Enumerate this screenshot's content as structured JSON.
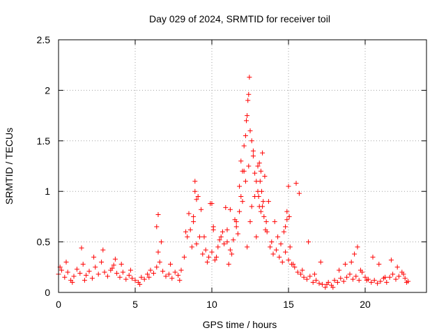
{
  "chart_data": {
    "type": "scatter",
    "title": "Day 029 of 2024, SRMTID for receiver toil",
    "xlabel": "GPS time / hours",
    "ylabel": "SRMTID / TECUs",
    "xlim": [
      0,
      24
    ],
    "ylim": [
      0,
      2.5
    ],
    "x_ticks": [
      0,
      5,
      10,
      15,
      20
    ],
    "x_tick_labels": [
      "0",
      "5",
      "10",
      "15",
      "20"
    ],
    "y_ticks": [
      0,
      0.5,
      1,
      1.5,
      2,
      2.5
    ],
    "y_tick_labels": [
      "0",
      "0.5",
      "1",
      "1.5",
      "2",
      "2.5"
    ],
    "grid": true,
    "marker": "+",
    "marker_color": "#ff0000",
    "series": [
      {
        "name": "SRMTID",
        "x": [
          0.0,
          0.2,
          0.4,
          0.6,
          0.8,
          1.0,
          1.2,
          1.4,
          1.6,
          1.8,
          2.0,
          2.2,
          2.4,
          2.6,
          2.8,
          3.0,
          3.2,
          3.4,
          3.6,
          3.8,
          4.0,
          4.2,
          4.4,
          4.6,
          4.8,
          5.0,
          5.2,
          5.4,
          5.6,
          5.8,
          6.0,
          6.2,
          6.4,
          6.6,
          6.8,
          7.0,
          7.2,
          7.4,
          7.6,
          7.8,
          8.0,
          8.2,
          8.4,
          8.6,
          8.8,
          9.0,
          9.2,
          9.4,
          9.6,
          9.8,
          10.0,
          10.2,
          10.4,
          10.6,
          10.8,
          11.0,
          11.2,
          11.4,
          11.6,
          11.8,
          12.0,
          12.2,
          12.4,
          12.6,
          12.8,
          13.0,
          13.2,
          13.4,
          13.6,
          13.8,
          14.0,
          14.2,
          14.4,
          14.6,
          14.8,
          15.0,
          15.2,
          15.4,
          15.6,
          15.8,
          16.0,
          16.2,
          16.4,
          16.6,
          16.8,
          17.0,
          17.2,
          17.4,
          17.6,
          17.8,
          18.0,
          18.2,
          18.4,
          18.6,
          18.8,
          19.0,
          19.2,
          19.4,
          19.6,
          19.8,
          20.0,
          20.2,
          20.4,
          20.6,
          20.8,
          21.0,
          21.2,
          21.4,
          21.6,
          21.8,
          22.0,
          22.2,
          22.4,
          22.6,
          22.8,
          0.1,
          0.5,
          0.9,
          1.5,
          1.7,
          2.3,
          2.9,
          3.5,
          3.7,
          4.1,
          4.7,
          5.3,
          5.9,
          6.5,
          6.7,
          7.3,
          7.9,
          8.3,
          8.5,
          8.7,
          8.9,
          9.1,
          9.3,
          9.5,
          9.7,
          9.9,
          10.1,
          10.3,
          10.5,
          10.7,
          10.9,
          11.1,
          11.3,
          11.5,
          11.7,
          11.9,
          12.1,
          12.3,
          12.5,
          12.7,
          12.9,
          13.1,
          13.3,
          13.5,
          13.7,
          13.9,
          14.1,
          14.3,
          14.5,
          14.7,
          14.9,
          15.1,
          15.3,
          15.5,
          15.7,
          15.9,
          16.3,
          16.7,
          17.1,
          17.5,
          17.9,
          18.3,
          18.7,
          19.1,
          19.3,
          19.5,
          19.7,
          20.1,
          20.5,
          20.9,
          21.3,
          21.7,
          22.1,
          22.5,
          22.7,
          12.1,
          12.2,
          12.25,
          12.3,
          12.35,
          12.4,
          12.45,
          11.9,
          12.0,
          11.8,
          12.5,
          12.6,
          12.7,
          12.8,
          12.9,
          13.0,
          13.05,
          13.1,
          13.15,
          13.2,
          13.25,
          13.3,
          13.35,
          13.45,
          13.55,
          11.0,
          11.2,
          11.6,
          14.8,
          14.9,
          15.0,
          15.05,
          8.9,
          9.0,
          8.8,
          10.0,
          10.1,
          6.5,
          6.4
        ],
        "y": [
          0.18,
          0.22,
          0.15,
          0.2,
          0.12,
          0.16,
          0.23,
          0.19,
          0.28,
          0.17,
          0.21,
          0.14,
          0.25,
          0.18,
          0.3,
          0.2,
          0.16,
          0.22,
          0.27,
          0.19,
          0.15,
          0.2,
          0.13,
          0.17,
          0.14,
          0.12,
          0.1,
          0.15,
          0.13,
          0.18,
          0.22,
          0.19,
          0.25,
          0.3,
          0.21,
          0.16,
          0.18,
          0.14,
          0.2,
          0.17,
          0.22,
          0.35,
          0.55,
          0.62,
          0.7,
          0.48,
          0.55,
          0.38,
          0.42,
          0.35,
          0.4,
          0.32,
          0.45,
          0.55,
          0.48,
          0.5,
          0.42,
          0.52,
          0.65,
          0.8,
          0.9,
          1.1,
          1.25,
          0.85,
          0.95,
          1.0,
          0.8,
          0.75,
          0.6,
          0.45,
          0.38,
          0.42,
          0.35,
          0.3,
          0.4,
          0.32,
          0.28,
          0.25,
          0.2,
          0.18,
          0.15,
          0.13,
          0.16,
          0.1,
          0.12,
          0.09,
          0.08,
          0.05,
          0.1,
          0.07,
          0.12,
          0.1,
          0.14,
          0.11,
          0.15,
          0.18,
          0.13,
          0.16,
          0.12,
          0.2,
          0.15,
          0.13,
          0.1,
          0.12,
          0.09,
          0.11,
          0.14,
          0.1,
          0.15,
          0.18,
          0.13,
          0.16,
          0.2,
          0.14,
          0.11,
          0.25,
          0.3,
          0.1,
          0.44,
          0.12,
          0.35,
          0.42,
          0.24,
          0.33,
          0.28,
          0.22,
          0.08,
          0.15,
          0.4,
          0.5,
          0.28,
          0.12,
          0.6,
          0.78,
          0.45,
          1.1,
          0.95,
          0.82,
          0.55,
          0.3,
          0.88,
          0.62,
          0.35,
          0.52,
          0.6,
          0.84,
          0.28,
          0.38,
          0.72,
          0.58,
          0.95,
          1.2,
          0.45,
          0.7,
          1.4,
          0.55,
          0.85,
          1.38,
          0.62,
          0.9,
          0.5,
          0.7,
          0.55,
          0.48,
          0.6,
          0.72,
          0.45,
          0.28,
          1.08,
          0.98,
          0.22,
          0.5,
          0.18,
          0.3,
          0.08,
          0.05,
          0.22,
          0.28,
          0.3,
          0.38,
          0.45,
          0.22,
          0.12,
          0.35,
          0.28,
          0.15,
          0.32,
          0.25,
          0.18,
          0.1,
          1.45,
          1.55,
          1.7,
          1.75,
          1.9,
          1.96,
          2.13,
          1.3,
          1.2,
          1.05,
          1.6,
          1.5,
          1.35,
          1.18,
          1.1,
          1.25,
          0.95,
          1.28,
          1.1,
          1.2,
          1.0,
          0.85,
          0.9,
          1.15,
          0.7,
          0.62,
          0.82,
          0.7,
          0.65,
          0.8,
          1.05,
          0.75,
          1.0,
          0.92,
          0.75,
          0.88,
          0.65,
          0.77,
          0.65
        ]
      }
    ]
  }
}
